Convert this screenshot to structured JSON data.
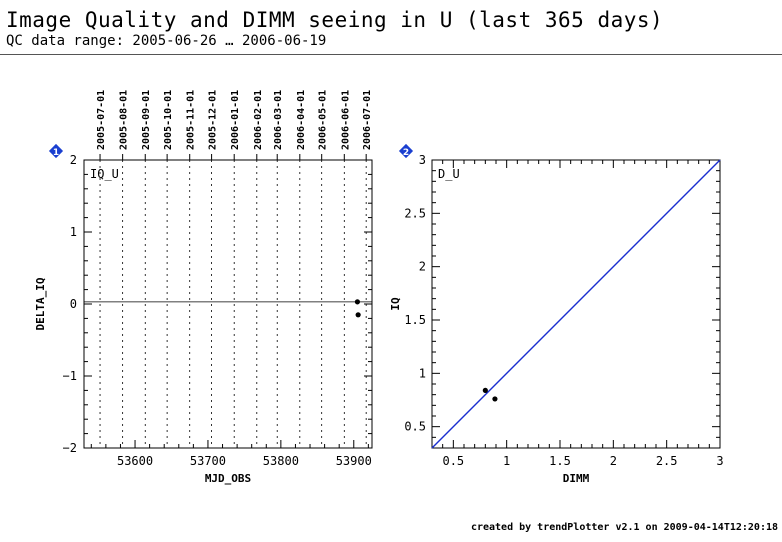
{
  "header": {
    "title": "Image Quality and DIMM seeing in U (last 365 days)",
    "subtitle": "QC data range: 2005-06-26 … 2006-06-19"
  },
  "footer": {
    "text": "created by trendPlotter v2.1 on 2009-04-14T12:20:18"
  },
  "colors": {
    "marker_badge": "#1a3fd0",
    "fit_line": "#1a2fd0",
    "points": "#000000"
  },
  "chart_data": [
    {
      "type": "scatter",
      "id": "1",
      "label": "IQ_U",
      "xlabel": "MJD_OBS",
      "ylabel": "DELTA_IQ",
      "xlim": [
        53530,
        53925
      ],
      "ylim": [
        -2,
        2
      ],
      "x_ticks": [
        53600,
        53700,
        53800,
        53900
      ],
      "y_ticks": [
        -2,
        -1,
        0,
        1,
        2
      ],
      "date_labels": [
        "2005-07-01",
        "2005-08-01",
        "2005-09-01",
        "2005-10-01",
        "2005-11-01",
        "2005-12-01",
        "2006-01-01",
        "2006-02-01",
        "2006-03-01",
        "2006-04-01",
        "2006-05-01",
        "2006-06-01",
        "2006-07-01"
      ],
      "date_mjd": [
        53552,
        53583,
        53614,
        53644,
        53675,
        53705,
        53736,
        53767,
        53795,
        53826,
        53856,
        53887,
        53917
      ],
      "reference_line_y": 0.03,
      "points": [
        {
          "x": 53905,
          "y": 0.03
        },
        {
          "x": 53906,
          "y": -0.15
        }
      ]
    },
    {
      "type": "scatter",
      "id": "2",
      "label": "D_U",
      "xlabel": "DIMM",
      "ylabel": "IQ",
      "xlim": [
        0.3,
        3
      ],
      "ylim": [
        0.3,
        3
      ],
      "x_ticks": [
        0.5,
        1,
        1.5,
        2,
        2.5,
        3
      ],
      "y_ticks": [
        0.5,
        1,
        1.5,
        2,
        2.5,
        3
      ],
      "reference_line": "y = x",
      "points": [
        {
          "x": 0.8,
          "y": 0.84
        },
        {
          "x": 0.89,
          "y": 0.76
        }
      ]
    }
  ]
}
